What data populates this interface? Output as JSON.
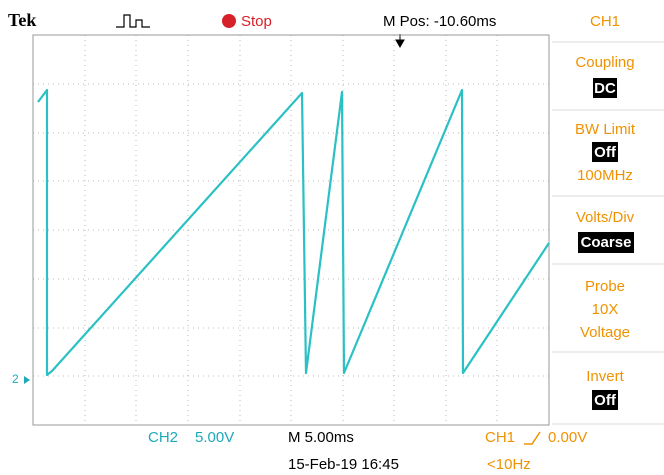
{
  "header": {
    "brand": "Tek",
    "status": "Stop",
    "position": "M Pos: -10.60ms",
    "channel": "CH1"
  },
  "menu": [
    {
      "label": "Coupling",
      "value": "DC"
    },
    {
      "label": "BW Limit",
      "value": "Off",
      "extra": "100MHz"
    },
    {
      "label": "Volts/Div",
      "value": "Coarse"
    },
    {
      "label": "Probe",
      "lines": [
        "10X",
        "Voltage"
      ]
    },
    {
      "label": "Invert",
      "value": "Off"
    }
  ],
  "marker": "2",
  "footer": {
    "ch2_name": "CH2",
    "ch2_scale": "5.00V",
    "timebase": "M 5.00ms",
    "trigger_channel": "CH1",
    "trigger_level": "0.00V",
    "date": "15-Feb-19 16:45",
    "frequency": "<10Hz"
  }
}
